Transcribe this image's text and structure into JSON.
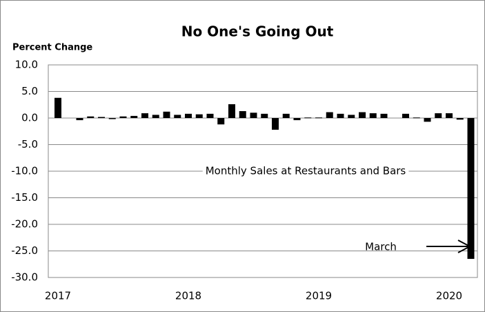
{
  "chart_data": {
    "type": "bar",
    "title": "No One's Going Out",
    "y_label": "Percent Change",
    "annotations": [
      "Monthly Sales at Restaurants and Bars",
      "March"
    ],
    "categories": [
      "2017",
      null,
      null,
      null,
      null,
      null,
      null,
      null,
      null,
      null,
      null,
      null,
      "2018",
      null,
      null,
      null,
      null,
      null,
      null,
      null,
      null,
      null,
      null,
      null,
      "2019",
      null,
      null,
      null,
      null,
      null,
      null,
      null,
      null,
      null,
      null,
      null,
      "2020",
      null,
      null
    ],
    "values": [
      3.8,
      0,
      -0.4,
      0.3,
      0.2,
      -0.2,
      0.3,
      0.4,
      0.9,
      0.6,
      1.2,
      0.6,
      0.8,
      0.7,
      0.8,
      -1.2,
      2.6,
      1.3,
      1.0,
      0.8,
      -2.2,
      0.8,
      -0.4,
      0.1,
      0.1,
      1.1,
      0.8,
      0.6,
      1.1,
      0.9,
      0.8,
      0,
      0.8,
      0.1,
      -0.7,
      0.9,
      0.9,
      -0.3,
      -26.5
    ],
    "color": "#000000",
    "ylim": [
      -30,
      10
    ],
    "yticks": [
      {
        "value": -30,
        "label": "-30.0"
      },
      {
        "value": -25,
        "label": "-25.0"
      },
      {
        "value": -20,
        "label": "-20.0"
      },
      {
        "value": -15,
        "label": "-15.0"
      },
      {
        "value": -10,
        "label": "-10.0"
      },
      {
        "value": -5,
        "label": "-5.0"
      },
      {
        "value": 0,
        "label": "0.0"
      },
      {
        "value": 5,
        "label": "5.0"
      },
      {
        "value": 10,
        "label": "10.0"
      }
    ],
    "grid": true
  }
}
